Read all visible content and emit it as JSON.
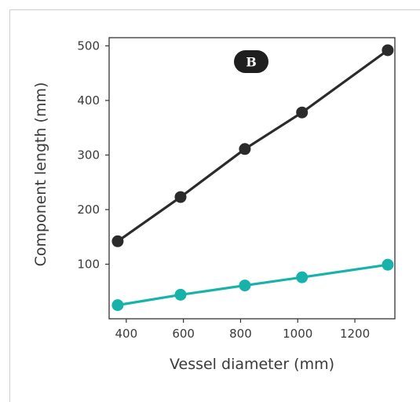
{
  "chart_data": {
    "type": "line",
    "panel_label": "B",
    "xlabel": "Vessel diameter (mm)",
    "ylabel": "Component length (mm)",
    "x_ticks": [
      400,
      600,
      800,
      1000,
      1200
    ],
    "y_ticks": [
      100,
      200,
      300,
      400,
      500
    ],
    "xlim": [
      340,
      1340
    ],
    "ylim": [
      0,
      515
    ],
    "grid": false,
    "series": [
      {
        "color": "#2b2b2b",
        "x": [
          370,
          590,
          815,
          1015,
          1315
        ],
        "y": [
          142,
          223,
          311,
          378,
          492
        ]
      },
      {
        "color": "#17b3ab",
        "x": [
          370,
          590,
          815,
          1015,
          1315
        ],
        "y": [
          25,
          44,
          61,
          76,
          99
        ]
      }
    ]
  }
}
